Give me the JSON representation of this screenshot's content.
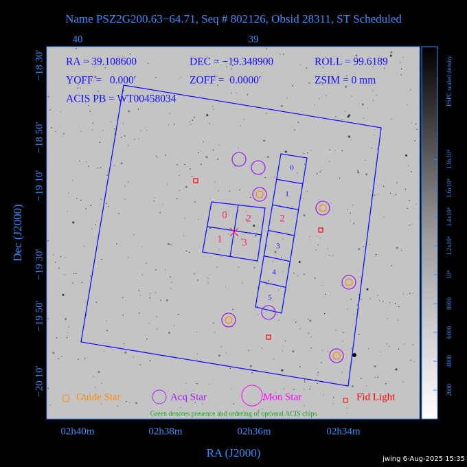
{
  "header": {
    "title": "Name PSZ2G200.63−64.71, Seq # 802126, Obsid 28311, ST Scheduled"
  },
  "axes": {
    "top_ticks": [
      "40",
      "39"
    ],
    "left_ticks": [
      "−18 30′",
      "−18 50′",
      "−19 10′",
      "−19 30′",
      "−19 50′",
      "−20 10′"
    ],
    "bottom_ticks": [
      "02h40m",
      "02h38m",
      "02h36m",
      "02h34m"
    ],
    "x_label": "RA (J2000)",
    "y_label": "Dec (J2000)"
  },
  "colorbar": {
    "label": "PSPC scaled density",
    "ticks": [
      "2000",
      "4000",
      "6000",
      "8000",
      "10⁴",
      "1.2x10⁴",
      "1.4x10⁴",
      "1.6x10⁴",
      "1.8x10⁴"
    ]
  },
  "info": {
    "ra": "RA = 39.108600",
    "dec": "DEC = −19.348900",
    "roll": "ROLL = 99.6189",
    "yoff": "YOFF =   0.000′",
    "zoff": "ZOFF =  0.0000′",
    "zsim": "ZSIM = 0 mm",
    "acis_pb": "ACIS PB = WT00458034"
  },
  "chips": {
    "acis_i": [
      "0",
      "2",
      "1",
      "3"
    ],
    "acis_s": [
      "0",
      "1",
      "2",
      "3",
      "4",
      "5"
    ]
  },
  "legend": {
    "guide": "Guide Star",
    "acq": "Acq Star",
    "mon": "Mon Star",
    "fid": "Fid Light",
    "note": "Green denotes presence and ordering of optional ACIS chips"
  },
  "footer": "jwing  6‐Aug‐2025 15:35"
}
